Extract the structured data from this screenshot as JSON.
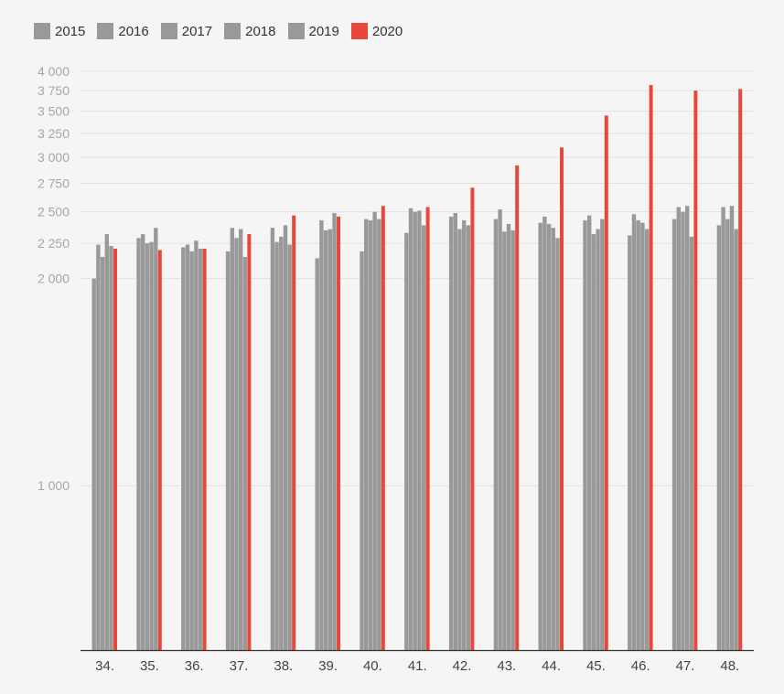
{
  "chart_data": {
    "type": "bar",
    "title": "",
    "xlabel": "",
    "ylabel": "",
    "yscale": "log",
    "ylim": [
      577,
      4000
    ],
    "grid": true,
    "legend_position": "top-left",
    "yticks": [
      {
        "value": 1000,
        "label": "1 000"
      },
      {
        "value": 2000,
        "label": "2 000"
      },
      {
        "value": 2250,
        "label": "2 250"
      },
      {
        "value": 2500,
        "label": "2 500"
      },
      {
        "value": 2750,
        "label": "2 750"
      },
      {
        "value": 3000,
        "label": "3 000"
      },
      {
        "value": 3250,
        "label": "3 250"
      },
      {
        "value": 3500,
        "label": "3 500"
      },
      {
        "value": 3750,
        "label": "3 750"
      },
      {
        "value": 4000,
        "label": "4 000"
      }
    ],
    "categories": [
      "34.",
      "35.",
      "36.",
      "37.",
      "38.",
      "39.",
      "40.",
      "41.",
      "42.",
      "43.",
      "44.",
      "45.",
      "46.",
      "47.",
      "48."
    ],
    "series": [
      {
        "name": "2015",
        "color": "#999999",
        "values": [
          2000,
          2290,
          2220,
          2190,
          2370,
          2140,
          2190,
          2330,
          2460,
          2440,
          2410,
          2430,
          2310,
          2440,
          2390
        ]
      },
      {
        "name": "2016",
        "color": "#999999",
        "values": [
          2240,
          2320,
          2240,
          2370,
          2260,
          2430,
          2440,
          2530,
          2490,
          2520,
          2460,
          2470,
          2480,
          2540,
          2540
        ]
      },
      {
        "name": "2017",
        "color": "#999999",
        "values": [
          2150,
          2250,
          2190,
          2290,
          2300,
          2350,
          2430,
          2500,
          2360,
          2340,
          2400,
          2320,
          2430,
          2500,
          2440
        ]
      },
      {
        "name": "2018",
        "color": "#999999",
        "values": [
          2320,
          2260,
          2270,
          2360,
          2390,
          2360,
          2500,
          2510,
          2430,
          2400,
          2370,
          2360,
          2410,
          2550,
          2550
        ]
      },
      {
        "name": "2019",
        "color": "#999999",
        "values": [
          2230,
          2370,
          2210,
          2150,
          2240,
          2490,
          2440,
          2390,
          2390,
          2350,
          2290,
          2440,
          2360,
          2300,
          2360
        ]
      },
      {
        "name": "2020",
        "color": "#e8473b",
        "values": [
          2210,
          2200,
          2210,
          2320,
          2470,
          2460,
          2550,
          2540,
          2710,
          2920,
          3100,
          3450,
          3820,
          3750,
          3770
        ]
      }
    ]
  }
}
